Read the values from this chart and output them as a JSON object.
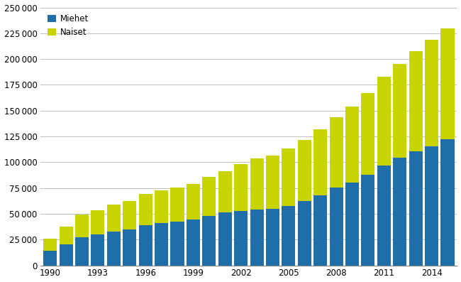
{
  "years": [
    1990,
    1991,
    1992,
    1993,
    1994,
    1995,
    1996,
    1997,
    1998,
    1999,
    2000,
    2001,
    2002,
    2003,
    2004,
    2005,
    2006,
    2007,
    2008,
    2009,
    2010,
    2011,
    2012,
    2013,
    2014,
    2015
  ],
  "miehet": [
    13983,
    20608,
    27023,
    29767,
    32821,
    35022,
    39028,
    41035,
    42638,
    44671,
    48118,
    51045,
    52979,
    54290,
    54942,
    57563,
    62448,
    67997,
    75254,
    80220,
    87539,
    96770,
    104282,
    110668,
    115726,
    122368
  ],
  "totals": [
    26000,
    37500,
    49000,
    53500,
    59000,
    62500,
    69000,
    73000,
    75500,
    79000,
    85500,
    91000,
    98000,
    103500,
    106500,
    113500,
    121500,
    132000,
    143500,
    154000,
    167000,
    183000,
    195000,
    207500,
    219000,
    230000
  ],
  "miehet_color": "#1f6eaa",
  "naiset_color": "#c8d400",
  "ylim": [
    0,
    250000
  ],
  "yticks": [
    0,
    25000,
    50000,
    75000,
    100000,
    125000,
    150000,
    175000,
    200000,
    225000,
    250000
  ],
  "xtick_positions": [
    0,
    3,
    6,
    9,
    12,
    15,
    18,
    21,
    24
  ],
  "xtick_labels": [
    "1990",
    "1993",
    "1996",
    "1999",
    "2002",
    "2005",
    "2008",
    "2011",
    "2014"
  ],
  "legend_labels": [
    "Miehet",
    "Naiset"
  ],
  "figsize": [
    6.5,
    3.97
  ],
  "dpi": 100
}
